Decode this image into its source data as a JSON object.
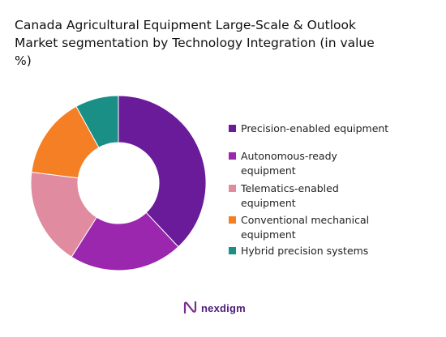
{
  "chart_data": {
    "type": "pie",
    "title_lines": [
      "Canada Agricultural Equipment Large-Scale & Outlook",
      "Market segmentation by Technology Integration (in value",
      "%)"
    ],
    "categories": [
      "Precision-enabled equipment",
      "Autonomous-ready equipment",
      "Telematics-enabled equipment",
      "Conventional mechanical equipment",
      "Hybrid precision systems"
    ],
    "values": [
      38,
      21,
      18,
      15,
      8
    ],
    "unit": "%",
    "colors": [
      "#6a1b9a",
      "#9b27af",
      "#e08ba0",
      "#f57f24",
      "#1a8f86"
    ],
    "donut": true,
    "legend_position": "right"
  },
  "legend": {
    "items": [
      {
        "label": "Precision-enabled equipment",
        "color": "#6a1b9a"
      },
      {
        "label": "Autonomous-ready equipment",
        "color": "#9b27af"
      },
      {
        "label": "Telematics-enabled equipment",
        "color": "#e08ba0"
      },
      {
        "label": "Conventional mechanical equipment",
        "color": "#f57f24"
      },
      {
        "label": "Hybrid precision systems",
        "color": "#1a8f86"
      }
    ]
  },
  "brand": {
    "name": "nexdigm",
    "icon": "nexdigm-logo-icon",
    "color": "#4b1c7a"
  }
}
